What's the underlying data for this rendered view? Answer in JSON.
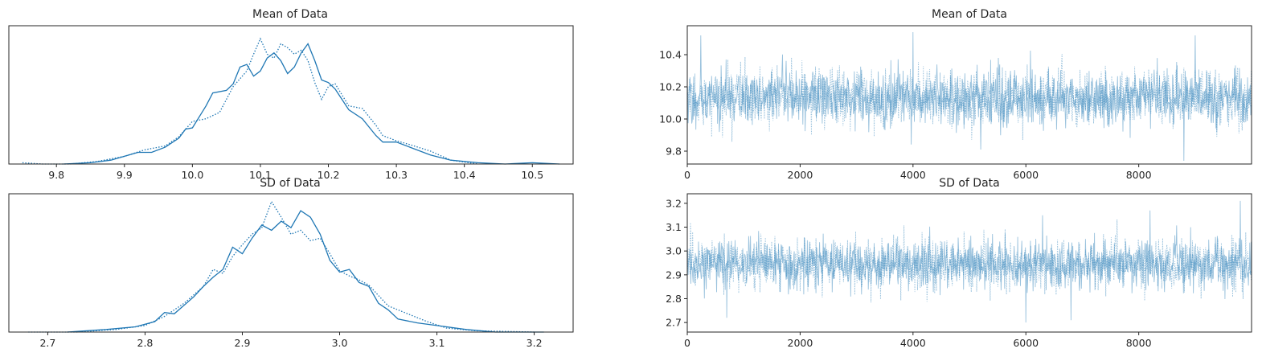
{
  "colors": {
    "line": "#1f77b4",
    "trace": "#1f77b4",
    "axis": "#262626",
    "background": "#ffffff"
  },
  "chart_data": [
    {
      "id": "mean-kde",
      "type": "line",
      "title": "Mean of Data",
      "xlim": [
        9.73,
        10.56
      ],
      "ylim": [
        0,
        1.07
      ],
      "y_ticks_visible": false,
      "x_ticks": [
        "9.8",
        "9.9",
        "10.0",
        "10.1",
        "10.2",
        "10.3",
        "10.4",
        "10.5"
      ],
      "series": [
        {
          "style": "solid",
          "x": [
            9.81,
            9.85,
            9.88,
            9.9,
            9.92,
            9.94,
            9.96,
            9.98,
            9.99,
            10.0,
            10.02,
            10.03,
            10.05,
            10.06,
            10.07,
            10.08,
            10.09,
            10.1,
            10.11,
            10.12,
            10.13,
            10.14,
            10.15,
            10.16,
            10.17,
            10.18,
            10.19,
            10.2,
            10.21,
            10.23,
            10.25,
            10.27,
            10.28,
            10.3,
            10.32,
            10.35,
            10.38,
            10.42,
            10.46,
            10.5,
            10.54
          ],
          "y": [
            0.0,
            0.01,
            0.03,
            0.06,
            0.09,
            0.09,
            0.13,
            0.2,
            0.27,
            0.28,
            0.45,
            0.55,
            0.57,
            0.62,
            0.75,
            0.77,
            0.68,
            0.72,
            0.82,
            0.86,
            0.8,
            0.7,
            0.75,
            0.86,
            0.93,
            0.8,
            0.65,
            0.63,
            0.58,
            0.42,
            0.35,
            0.22,
            0.17,
            0.17,
            0.13,
            0.07,
            0.03,
            0.01,
            0.0,
            0.01,
            0.0
          ]
        },
        {
          "style": "dotted",
          "x": [
            9.75,
            9.78,
            9.82,
            9.86,
            9.9,
            9.93,
            9.96,
            9.98,
            10.0,
            10.02,
            10.04,
            10.06,
            10.08,
            10.09,
            10.1,
            10.11,
            10.12,
            10.13,
            10.14,
            10.15,
            10.16,
            10.17,
            10.18,
            10.19,
            10.2,
            10.21,
            10.23,
            10.25,
            10.27,
            10.28,
            10.3,
            10.32,
            10.35,
            10.38,
            10.42
          ],
          "y": [
            0.01,
            0.0,
            0.0,
            0.02,
            0.06,
            0.11,
            0.14,
            0.21,
            0.33,
            0.35,
            0.4,
            0.6,
            0.72,
            0.85,
            0.97,
            0.85,
            0.82,
            0.93,
            0.9,
            0.85,
            0.88,
            0.8,
            0.63,
            0.5,
            0.6,
            0.62,
            0.45,
            0.43,
            0.3,
            0.22,
            0.18,
            0.15,
            0.1,
            0.03,
            0.0
          ]
        }
      ]
    },
    {
      "id": "mean-trace",
      "type": "line",
      "title": "Mean of Data",
      "xlim": [
        0,
        9999
      ],
      "ylim": [
        9.72,
        10.58
      ],
      "x_ticks": [
        "0",
        "2000",
        "4000",
        "6000",
        "8000"
      ],
      "y_ticks": [
        "9.8",
        "10.0",
        "10.2",
        "10.4"
      ],
      "trace": {
        "n": 10000,
        "center": 10.13,
        "sd": 0.12,
        "spikes": [
          [
            240,
            10.52
          ],
          [
            4000,
            10.54
          ],
          [
            9000,
            10.52
          ],
          [
            8800,
            9.74
          ],
          [
            5200,
            9.81
          ]
        ]
      }
    },
    {
      "id": "sd-kde",
      "type": "line",
      "title": "SD of Data",
      "xlim": [
        2.66,
        3.24
      ],
      "ylim": [
        0,
        1.06
      ],
      "y_ticks_visible": false,
      "x_ticks": [
        "2.7",
        "2.8",
        "2.9",
        "3.0",
        "3.1",
        "3.2"
      ],
      "series": [
        {
          "style": "solid",
          "x": [
            2.72,
            2.76,
            2.79,
            2.81,
            2.82,
            2.83,
            2.85,
            2.86,
            2.87,
            2.88,
            2.89,
            2.9,
            2.91,
            2.92,
            2.93,
            2.94,
            2.95,
            2.96,
            2.97,
            2.98,
            2.99,
            3.0,
            3.01,
            3.02,
            3.03,
            3.04,
            3.05,
            3.06,
            3.08,
            3.1,
            3.13,
            3.16,
            3.21
          ],
          "y": [
            0.0,
            0.02,
            0.04,
            0.08,
            0.15,
            0.14,
            0.27,
            0.35,
            0.42,
            0.48,
            0.65,
            0.6,
            0.72,
            0.82,
            0.78,
            0.85,
            0.8,
            0.93,
            0.88,
            0.75,
            0.55,
            0.46,
            0.48,
            0.38,
            0.35,
            0.22,
            0.17,
            0.1,
            0.07,
            0.05,
            0.02,
            0.0,
            0.0
          ]
        },
        {
          "style": "dotted",
          "x": [
            2.68,
            2.73,
            2.77,
            2.8,
            2.82,
            2.84,
            2.86,
            2.87,
            2.88,
            2.89,
            2.9,
            2.91,
            2.92,
            2.93,
            2.94,
            2.95,
            2.96,
            2.97,
            2.98,
            2.99,
            3.0,
            3.01,
            3.02,
            3.03,
            3.04,
            3.05,
            3.07,
            3.09,
            3.11,
            3.14,
            3.2
          ],
          "y": [
            0.0,
            0.0,
            0.02,
            0.05,
            0.12,
            0.22,
            0.35,
            0.48,
            0.45,
            0.58,
            0.67,
            0.75,
            0.8,
            1.0,
            0.88,
            0.75,
            0.78,
            0.7,
            0.72,
            0.6,
            0.47,
            0.43,
            0.4,
            0.36,
            0.28,
            0.2,
            0.14,
            0.08,
            0.03,
            0.01,
            0.0
          ]
        }
      ]
    },
    {
      "id": "sd-trace",
      "type": "line",
      "title": "SD of Data",
      "xlim": [
        0,
        9999
      ],
      "ylim": [
        2.66,
        3.24
      ],
      "x_ticks": [
        "0",
        "2000",
        "4000",
        "6000",
        "8000"
      ],
      "y_ticks": [
        "2.7",
        "2.8",
        "2.9",
        "3.0",
        "3.1",
        "3.2"
      ],
      "trace": {
        "n": 10000,
        "center": 2.945,
        "sd": 0.07,
        "spikes": [
          [
            9800,
            3.21
          ],
          [
            6000,
            3.2
          ],
          [
            8200,
            3.17
          ],
          [
            6000,
            2.7
          ],
          [
            6800,
            2.71
          ],
          [
            700,
            2.72
          ]
        ]
      }
    }
  ]
}
